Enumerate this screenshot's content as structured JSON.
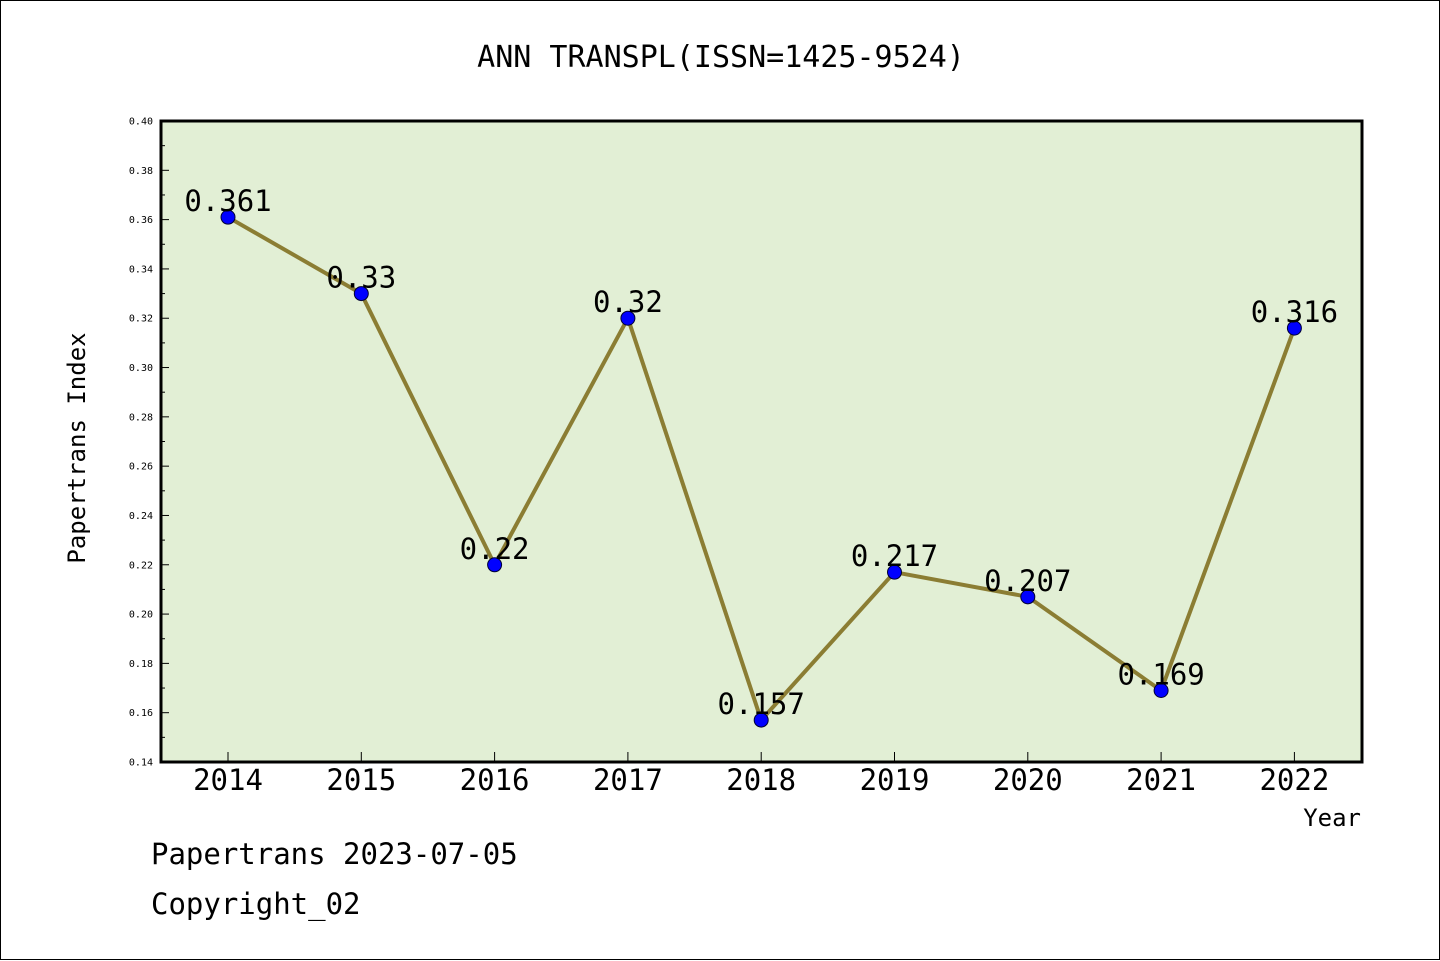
{
  "chart_data": {
    "type": "line",
    "title": "ANN TRANSPL(ISSN=1425-9524)",
    "xlabel": "Year",
    "ylabel": "Papertrans Index",
    "categories": [
      "2014",
      "2015",
      "2016",
      "2017",
      "2018",
      "2019",
      "2020",
      "2021",
      "2022"
    ],
    "series": [
      {
        "values": [
          0.361,
          0.33,
          0.22,
          0.32,
          0.157,
          0.217,
          0.207,
          0.169,
          0.316
        ],
        "data_labels": [
          "0.361",
          "0.33",
          "0.22",
          "0.32",
          "0.157",
          "0.217",
          "0.207",
          "0.169",
          "0.316"
        ]
      }
    ],
    "ylim": [
      0.14,
      0.4
    ],
    "yticks": [
      "0.14",
      "0.16",
      "0.18",
      "0.20",
      "0.22",
      "0.24",
      "0.26",
      "0.28",
      "0.30",
      "0.32",
      "0.34",
      "0.36",
      "0.38",
      "0.40"
    ],
    "grid": false,
    "legend": "none",
    "colors": {
      "plot_background": "#e2efd5",
      "line": "#8b7d33",
      "marker": "#0000ff"
    }
  },
  "footer": {
    "date_text": "Papertrans 2023-07-05",
    "copyright_text": "Copyright_02"
  }
}
